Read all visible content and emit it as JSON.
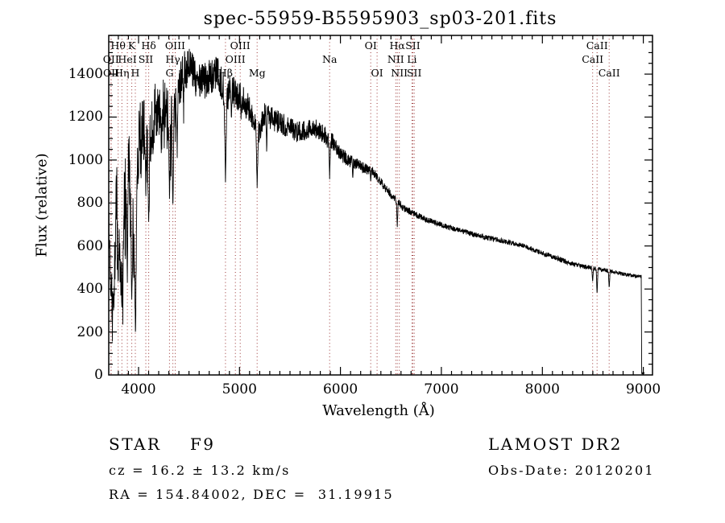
{
  "title": "spec-55959-B5595903_sp03-201.fits",
  "axes": {
    "xlabel": "Wavelength (Å)",
    "ylabel": "Flux (relative)",
    "x_ticks": [
      4000,
      5000,
      6000,
      7000,
      8000,
      9000
    ],
    "y_ticks": [
      0,
      200,
      400,
      600,
      800,
      1000,
      1200,
      1400
    ]
  },
  "annotations": {
    "bottom_left": {
      "class_line": "STAR    F9",
      "cz_line": "cz = 16.2 ± 13.2 km/s",
      "radec_line": "RA = 154.84002, DEC =  31.19915"
    },
    "bottom_right": {
      "survey": "LAMOST DR2",
      "obs_date": "Obs-Date: 20120201"
    }
  },
  "colors": {
    "spectrum": "#000000",
    "frame": "#000000",
    "marker_line": "#993333",
    "background": "#ffffff"
  },
  "line_markers": [
    {
      "label": "Hθ",
      "wavelength": 3798,
      "row": 1
    },
    {
      "label": "K",
      "wavelength": 3933,
      "row": 1
    },
    {
      "label": "Hδ",
      "wavelength": 4101,
      "row": 1
    },
    {
      "label": "OIII",
      "wavelength": 4363,
      "row": 1
    },
    {
      "label": "OIII",
      "wavelength": 5007,
      "row": 1
    },
    {
      "label": "OI",
      "wavelength": 6300,
      "row": 1
    },
    {
      "label": "Hα",
      "wavelength": 6563,
      "row": 1
    },
    {
      "label": "SII",
      "wavelength": 6717,
      "row": 1
    },
    {
      "label": "CaII",
      "wavelength": 8542,
      "row": 1
    },
    {
      "label": "OII",
      "wavelength": 3727,
      "row": 2
    },
    {
      "label": "HeI",
      "wavelength": 3889,
      "row": 2
    },
    {
      "label": "SII",
      "wavelength": 4072,
      "row": 2
    },
    {
      "label": "Hγ",
      "wavelength": 4340,
      "row": 2
    },
    {
      "label": "OIII",
      "wavelength": 4959,
      "row": 2
    },
    {
      "label": "Na",
      "wavelength": 5893,
      "row": 2
    },
    {
      "label": "NII",
      "wavelength": 6548,
      "row": 2
    },
    {
      "label": "Li",
      "wavelength": 6708,
      "row": 2
    },
    {
      "label": "CaII",
      "wavelength": 8498,
      "row": 2
    },
    {
      "label": "OII",
      "wavelength": 3729,
      "row": 3
    },
    {
      "label": "Hη",
      "wavelength": 3835,
      "row": 3
    },
    {
      "label": "H",
      "wavelength": 3968,
      "row": 3
    },
    {
      "label": "G",
      "wavelength": 4307,
      "row": 3
    },
    {
      "label": "Hβ",
      "wavelength": 4861,
      "row": 3
    },
    {
      "label": "Mg",
      "wavelength": 5175,
      "row": 3
    },
    {
      "label": "OI",
      "wavelength": 6363,
      "row": 3
    },
    {
      "label": "NII",
      "wavelength": 6583,
      "row": 3
    },
    {
      "label": "SII",
      "wavelength": 6731,
      "row": 3
    },
    {
      "label": "CaII",
      "wavelength": 8662,
      "row": 3
    }
  ],
  "chart_data": {
    "type": "line",
    "title": "spec-55959-B5595903_sp03-201.fits",
    "xlabel": "Wavelength (Å)",
    "ylabel": "Flux (relative)",
    "xlim": [
      3705,
      9091
    ],
    "ylim": [
      0,
      1580
    ],
    "x_minor_step": 100,
    "y_minor_step": 50,
    "grid": false,
    "sample_step": 2,
    "noise_seed": 1337,
    "spectrum_end": 8980,
    "spectrum_tail_end": 9010,
    "continuum_points": [
      [
        3705,
        650
      ],
      [
        3720,
        520
      ],
      [
        3735,
        420
      ],
      [
        3750,
        380
      ],
      [
        3765,
        550
      ],
      [
        3780,
        800
      ],
      [
        3795,
        750
      ],
      [
        3810,
        600
      ],
      [
        3825,
        520
      ],
      [
        3840,
        560
      ],
      [
        3855,
        800
      ],
      [
        3870,
        850
      ],
      [
        3885,
        950
      ],
      [
        3900,
        1000
      ],
      [
        3915,
        850
      ],
      [
        3930,
        700
      ],
      [
        3945,
        650
      ],
      [
        3960,
        600
      ],
      [
        3975,
        750
      ],
      [
        3990,
        1000
      ],
      [
        4010,
        1150
      ],
      [
        4040,
        1180
      ],
      [
        4070,
        1100
      ],
      [
        4100,
        1000
      ],
      [
        4130,
        1180
      ],
      [
        4170,
        1220
      ],
      [
        4210,
        1240
      ],
      [
        4260,
        1270
      ],
      [
        4310,
        1170
      ],
      [
        4360,
        1260
      ],
      [
        4410,
        1340
      ],
      [
        4460,
        1420
      ],
      [
        4510,
        1430
      ],
      [
        4560,
        1390
      ],
      [
        4610,
        1360
      ],
      [
        4660,
        1370
      ],
      [
        4720,
        1390
      ],
      [
        4780,
        1410
      ],
      [
        4830,
        1350
      ],
      [
        4870,
        1280
      ],
      [
        4910,
        1330
      ],
      [
        4960,
        1310
      ],
      [
        5010,
        1290
      ],
      [
        5060,
        1260
      ],
      [
        5110,
        1230
      ],
      [
        5180,
        1120
      ],
      [
        5250,
        1210
      ],
      [
        5330,
        1190
      ],
      [
        5420,
        1170
      ],
      [
        5500,
        1150
      ],
      [
        5580,
        1130
      ],
      [
        5650,
        1140
      ],
      [
        5720,
        1150
      ],
      [
        5800,
        1140
      ],
      [
        5870,
        1100
      ],
      [
        5940,
        1080
      ],
      [
        6000,
        1030
      ],
      [
        6080,
        1000
      ],
      [
        6160,
        980
      ],
      [
        6240,
        960
      ],
      [
        6320,
        945
      ],
      [
        6400,
        900
      ],
      [
        6500,
        840
      ],
      [
        6618,
        780
      ],
      [
        6750,
        745
      ],
      [
        6900,
        715
      ],
      [
        7050,
        690
      ],
      [
        7200,
        670
      ],
      [
        7350,
        650
      ],
      [
        7500,
        635
      ],
      [
        7650,
        618
      ],
      [
        7800,
        605
      ],
      [
        7950,
        575
      ],
      [
        8100,
        550
      ],
      [
        8250,
        525
      ],
      [
        8400,
        505
      ],
      [
        8520,
        495
      ],
      [
        8600,
        490
      ],
      [
        8700,
        480
      ],
      [
        8800,
        470
      ],
      [
        8900,
        462
      ],
      [
        8980,
        458
      ]
    ],
    "absorption_lines": [
      [
        3727,
        9,
        380
      ],
      [
        3750,
        7,
        330
      ],
      [
        3798,
        9,
        400
      ],
      [
        3835,
        9,
        300
      ],
      [
        3889,
        9,
        420
      ],
      [
        3933,
        11,
        330
      ],
      [
        3970,
        12,
        170
      ],
      [
        4026,
        6,
        900
      ],
      [
        4072,
        7,
        850
      ],
      [
        4101,
        12,
        700
      ],
      [
        4144,
        6,
        980
      ],
      [
        4226,
        6,
        1020
      ],
      [
        4307,
        10,
        830
      ],
      [
        4340,
        12,
        740
      ],
      [
        4383,
        7,
        1020
      ],
      [
        4861,
        13,
        900
      ],
      [
        4920,
        6,
        1180
      ],
      [
        5015,
        6,
        1180
      ],
      [
        5175,
        13,
        870
      ],
      [
        5269,
        8,
        1040
      ],
      [
        5893,
        9,
        915
      ],
      [
        6122,
        6,
        910
      ],
      [
        6300,
        5,
        890
      ],
      [
        6563,
        9,
        690
      ],
      [
        8498,
        8,
        430
      ],
      [
        8542,
        9,
        370
      ],
      [
        8662,
        9,
        400
      ]
    ],
    "noise_profile": [
      [
        3705,
        200
      ],
      [
        3900,
        190
      ],
      [
        3990,
        170
      ],
      [
        4100,
        150
      ],
      [
        4300,
        120
      ],
      [
        4500,
        95
      ],
      [
        4700,
        85
      ],
      [
        4900,
        75
      ],
      [
        5100,
        65
      ],
      [
        5300,
        55
      ],
      [
        5500,
        50
      ],
      [
        5700,
        48
      ],
      [
        5900,
        42
      ],
      [
        6100,
        30
      ],
      [
        6300,
        24
      ],
      [
        6500,
        20
      ],
      [
        6700,
        16
      ],
      [
        7000,
        13
      ],
      [
        7400,
        12
      ],
      [
        7800,
        11
      ],
      [
        8200,
        12
      ],
      [
        8600,
        10
      ],
      [
        8980,
        8
      ]
    ]
  }
}
